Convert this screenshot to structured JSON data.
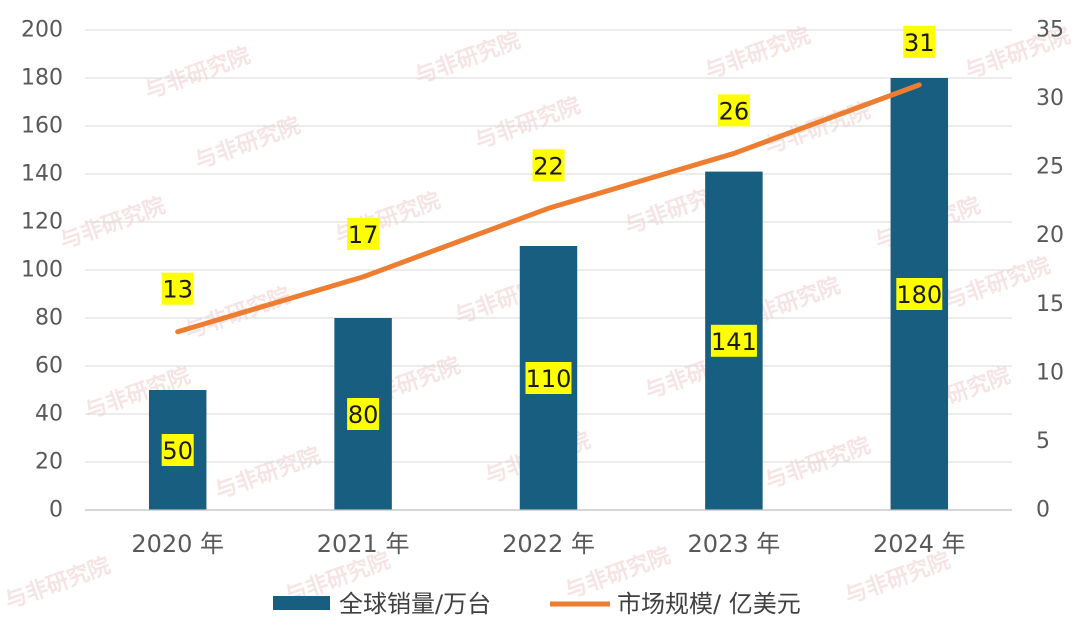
{
  "chart_data": {
    "type": "bar",
    "categories": [
      "2020 年",
      "2021 年",
      "2022 年",
      "2023 年",
      "2024 年"
    ],
    "series": [
      {
        "name": "全球销量/万台",
        "type": "bar",
        "axis": "left",
        "values": [
          50,
          80,
          110,
          141,
          180
        ],
        "color": "#175e80"
      },
      {
        "name": "市场规模/ 亿美元",
        "type": "line",
        "axis": "right",
        "values": [
          13,
          17,
          22,
          26,
          31
        ],
        "color": "#ed7d31"
      }
    ],
    "y_left": {
      "min": 0,
      "max": 200,
      "ticks": [
        0,
        20,
        40,
        60,
        80,
        100,
        120,
        140,
        160,
        180,
        200
      ]
    },
    "y_right": {
      "min": 0,
      "max": 35,
      "ticks": [
        0,
        5,
        10,
        15,
        20,
        25,
        30,
        35
      ]
    },
    "label_bg": "#ffff00",
    "grid": true,
    "legend_position": "bottom"
  },
  "watermark": {
    "text": "与非研究院"
  }
}
